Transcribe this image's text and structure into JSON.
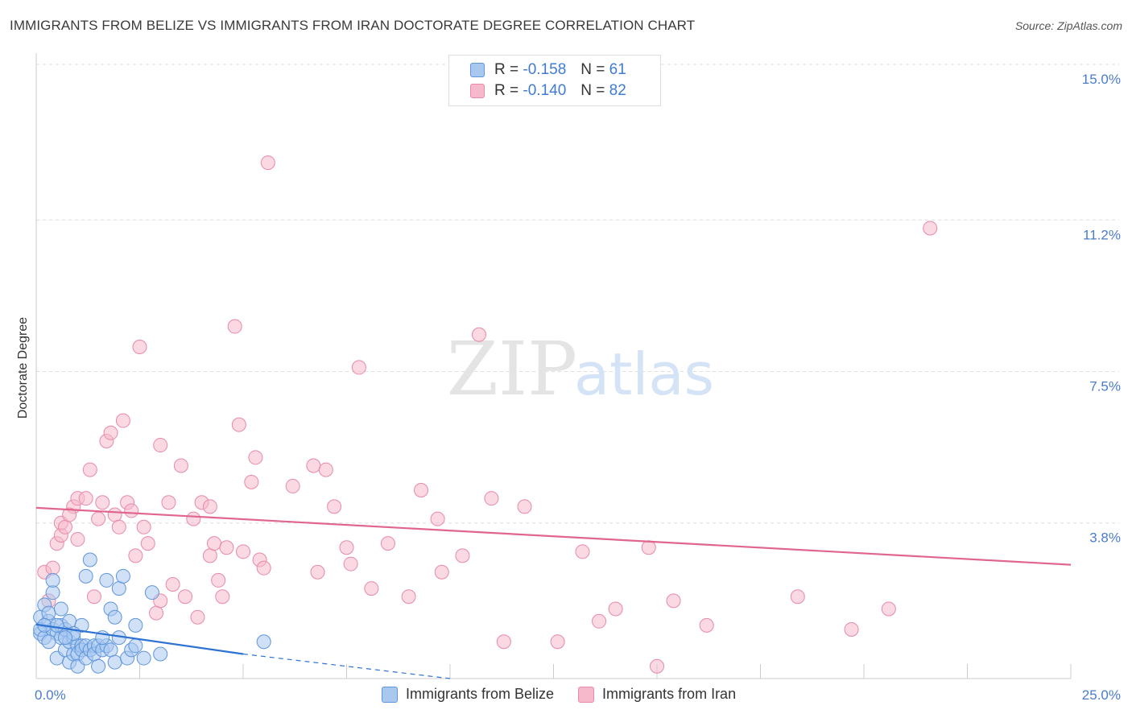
{
  "header": {
    "title": "IMMIGRANTS FROM BELIZE VS IMMIGRANTS FROM IRAN DOCTORATE DEGREE CORRELATION CHART",
    "source": "Source: ZipAtlas.com"
  },
  "watermark": {
    "zip": "ZIP",
    "atlas": "atlas"
  },
  "legend": {
    "belize": {
      "r_label": "R =",
      "r_value": "-0.158",
      "n_label": "N =",
      "n_value": "61"
    },
    "iran": {
      "r_label": "R =",
      "r_value": "-0.140",
      "n_label": "N =",
      "n_value": "82"
    }
  },
  "colors": {
    "belize_fill": "#a9c8f0",
    "belize_stroke": "#5e95db",
    "belize_line": "#2e72d2",
    "iran_fill": "#f6b9cc",
    "iran_stroke": "#e889a8",
    "iran_line": "#e0668f",
    "grid": "#dddddd",
    "tick": "#4a7cc9"
  },
  "chart_data": {
    "type": "scatter",
    "title": "IMMIGRANTS FROM BELIZE VS IMMIGRANTS FROM IRAN DOCTORATE DEGREE CORRELATION CHART",
    "xlabel": "",
    "ylabel": "Doctorate Degree",
    "xlim": [
      0,
      25
    ],
    "ylim": [
      0,
      15
    ],
    "x_tick_labels": [
      "0.0%",
      "25.0%"
    ],
    "y_tick_values": [
      3.8,
      7.5,
      11.2,
      15.0
    ],
    "y_tick_labels": [
      "3.8%",
      "7.5%",
      "11.2%",
      "15.0%"
    ],
    "grid": true,
    "legend_position": "top-center",
    "series": [
      {
        "name": "Immigrants from Belize",
        "R": -0.158,
        "N": 61,
        "points": [
          [
            0.1,
            1.5
          ],
          [
            0.1,
            1.1
          ],
          [
            0.1,
            1.2
          ],
          [
            0.2,
            1.8
          ],
          [
            0.2,
            1.0
          ],
          [
            0.3,
            1.4
          ],
          [
            0.3,
            1.6
          ],
          [
            0.4,
            1.2
          ],
          [
            0.4,
            2.1
          ],
          [
            0.4,
            2.4
          ],
          [
            0.5,
            1.1
          ],
          [
            0.5,
            0.5
          ],
          [
            0.6,
            1.7
          ],
          [
            0.6,
            1.3
          ],
          [
            0.6,
            1.0
          ],
          [
            0.7,
            1.2
          ],
          [
            0.7,
            0.7
          ],
          [
            0.8,
            1.4
          ],
          [
            0.8,
            0.9
          ],
          [
            0.8,
            0.4
          ],
          [
            0.9,
            0.6
          ],
          [
            0.9,
            1.0
          ],
          [
            1.0,
            0.8
          ],
          [
            1.0,
            0.6
          ],
          [
            1.0,
            0.3
          ],
          [
            1.1,
            0.8
          ],
          [
            1.1,
            0.7
          ],
          [
            1.1,
            1.3
          ],
          [
            1.2,
            0.8
          ],
          [
            1.2,
            0.5
          ],
          [
            1.2,
            2.5
          ],
          [
            1.3,
            2.9
          ],
          [
            1.3,
            0.7
          ],
          [
            1.4,
            0.8
          ],
          [
            1.4,
            0.6
          ],
          [
            1.5,
            0.3
          ],
          [
            1.5,
            0.8
          ],
          [
            1.6,
            0.7
          ],
          [
            1.7,
            2.4
          ],
          [
            1.7,
            0.8
          ],
          [
            1.8,
            1.7
          ],
          [
            1.8,
            0.7
          ],
          [
            1.9,
            0.4
          ],
          [
            1.9,
            1.5
          ],
          [
            2.0,
            2.2
          ],
          [
            2.0,
            1.0
          ],
          [
            2.1,
            2.5
          ],
          [
            2.2,
            0.5
          ],
          [
            2.3,
            0.7
          ],
          [
            2.4,
            1.3
          ],
          [
            2.4,
            0.8
          ],
          [
            2.6,
            0.5
          ],
          [
            2.8,
            2.1
          ],
          [
            3.0,
            0.6
          ],
          [
            5.5,
            0.9
          ],
          [
            0.2,
            1.3
          ],
          [
            0.5,
            1.3
          ],
          [
            0.9,
            1.1
          ],
          [
            1.6,
            1.0
          ],
          [
            0.3,
            0.9
          ],
          [
            0.7,
            1.0
          ]
        ],
        "trend": {
          "x": [
            0,
            5.0
          ],
          "y": [
            1.32,
            0.6
          ]
        },
        "trend_extension": {
          "x": [
            5.0,
            10.0
          ],
          "y": [
            0.6,
            0.0
          ]
        }
      },
      {
        "name": "Immigrants from Iran",
        "R": -0.14,
        "N": 82,
        "points": [
          [
            0.2,
            2.6
          ],
          [
            0.3,
            1.9
          ],
          [
            0.4,
            2.7
          ],
          [
            0.5,
            3.3
          ],
          [
            0.6,
            3.5
          ],
          [
            0.6,
            3.8
          ],
          [
            0.7,
            3.7
          ],
          [
            0.9,
            4.2
          ],
          [
            1.0,
            4.4
          ],
          [
            1.0,
            3.4
          ],
          [
            1.2,
            4.4
          ],
          [
            1.3,
            5.1
          ],
          [
            1.4,
            2.0
          ],
          [
            1.5,
            3.9
          ],
          [
            1.6,
            4.3
          ],
          [
            1.7,
            5.8
          ],
          [
            1.8,
            6.0
          ],
          [
            1.9,
            4.0
          ],
          [
            2.0,
            3.7
          ],
          [
            2.1,
            6.3
          ],
          [
            2.2,
            4.3
          ],
          [
            2.3,
            4.1
          ],
          [
            2.4,
            3.0
          ],
          [
            2.5,
            8.1
          ],
          [
            2.6,
            3.7
          ],
          [
            2.7,
            3.3
          ],
          [
            2.9,
            1.6
          ],
          [
            3.0,
            5.7
          ],
          [
            3.0,
            1.9
          ],
          [
            3.2,
            4.3
          ],
          [
            3.3,
            2.3
          ],
          [
            3.5,
            5.2
          ],
          [
            3.6,
            2.0
          ],
          [
            3.8,
            3.9
          ],
          [
            4.0,
            4.3
          ],
          [
            4.2,
            4.2
          ],
          [
            4.2,
            3.0
          ],
          [
            4.3,
            3.3
          ],
          [
            4.4,
            2.4
          ],
          [
            4.5,
            2.0
          ],
          [
            4.6,
            3.2
          ],
          [
            4.8,
            8.6
          ],
          [
            4.9,
            6.2
          ],
          [
            5.0,
            3.1
          ],
          [
            5.2,
            4.8
          ],
          [
            5.3,
            5.4
          ],
          [
            5.4,
            2.9
          ],
          [
            5.5,
            2.7
          ],
          [
            5.6,
            12.6
          ],
          [
            6.2,
            4.7
          ],
          [
            6.7,
            5.2
          ],
          [
            6.8,
            2.6
          ],
          [
            7.0,
            5.1
          ],
          [
            7.2,
            4.2
          ],
          [
            7.5,
            3.2
          ],
          [
            7.6,
            2.8
          ],
          [
            7.8,
            7.6
          ],
          [
            8.1,
            2.2
          ],
          [
            8.5,
            3.3
          ],
          [
            9.0,
            2.0
          ],
          [
            9.3,
            4.6
          ],
          [
            9.7,
            3.9
          ],
          [
            9.8,
            2.6
          ],
          [
            10.3,
            3.0
          ],
          [
            10.7,
            8.4
          ],
          [
            11.0,
            4.4
          ],
          [
            11.3,
            0.9
          ],
          [
            11.8,
            4.2
          ],
          [
            12.6,
            0.9
          ],
          [
            13.2,
            3.1
          ],
          [
            13.6,
            1.4
          ],
          [
            14.0,
            1.7
          ],
          [
            14.8,
            3.2
          ],
          [
            15.0,
            0.3
          ],
          [
            15.4,
            1.9
          ],
          [
            16.2,
            1.3
          ],
          [
            18.4,
            2.0
          ],
          [
            19.7,
            1.2
          ],
          [
            20.6,
            1.7
          ],
          [
            21.6,
            11.0
          ],
          [
            0.8,
            4.0
          ],
          [
            3.9,
            1.5
          ]
        ],
        "trend": {
          "x": [
            0,
            25
          ],
          "y": [
            4.17,
            2.78
          ]
        }
      }
    ]
  },
  "bottom_legend": {
    "belize_label": "Immigrants from Belize",
    "iran_label": "Immigrants from Iran"
  }
}
